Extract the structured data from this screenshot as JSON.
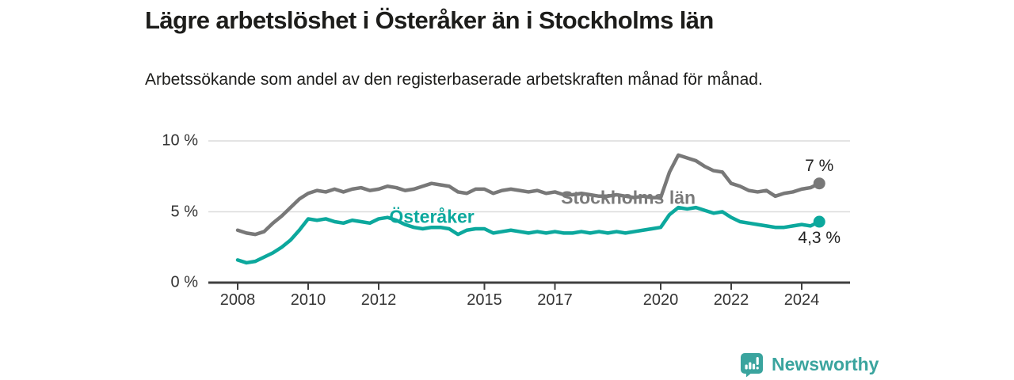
{
  "header": {
    "title": "Lägre arbetslöshet i Österåker än i Stockholms län",
    "subtitle": "Arbetssökande som andel av den registerbaserade arbetskraften månad för månad."
  },
  "chart_data": {
    "type": "line",
    "title": "Lägre arbetslöshet i Österåker än i Stockholms län",
    "subtitle": "Arbetssökande som andel av den registerbaserade arbetskraften månad för månad.",
    "xlabel": "",
    "ylabel": "",
    "unit": "%",
    "ylim": [
      0,
      10
    ],
    "xlim": [
      2007.2,
      2025.4
    ],
    "grid": "horizontal",
    "legend_position": "inline-labels",
    "colors": {
      "osteraker": "#0ca89d",
      "stockholm": "#787878",
      "axis": "#3f3f3f",
      "gridline": "#dcdcdc"
    },
    "y_ticks": [
      {
        "value": 0,
        "label": "0 %"
      },
      {
        "value": 5,
        "label": "5 %"
      },
      {
        "value": 10,
        "label": "10 %"
      }
    ],
    "x_ticks": [
      {
        "value": 2008,
        "label": "2008"
      },
      {
        "value": 2010,
        "label": "2010"
      },
      {
        "value": 2012,
        "label": "2012"
      },
      {
        "value": 2015,
        "label": "2015"
      },
      {
        "value": 2017,
        "label": "2017"
      },
      {
        "value": 2020,
        "label": "2020"
      },
      {
        "value": 2022,
        "label": "2022"
      },
      {
        "value": 2024,
        "label": "2024"
      }
    ],
    "x": [
      2008.0,
      2008.25,
      2008.5,
      2008.75,
      2009.0,
      2009.25,
      2009.5,
      2009.75,
      2010.0,
      2010.25,
      2010.5,
      2010.75,
      2011.0,
      2011.25,
      2011.5,
      2011.75,
      2012.0,
      2012.25,
      2012.5,
      2012.75,
      2013.0,
      2013.25,
      2013.5,
      2013.75,
      2014.0,
      2014.25,
      2014.5,
      2014.75,
      2015.0,
      2015.25,
      2015.5,
      2015.75,
      2016.0,
      2016.25,
      2016.5,
      2016.75,
      2017.0,
      2017.25,
      2017.5,
      2017.75,
      2018.0,
      2018.25,
      2018.5,
      2018.75,
      2019.0,
      2019.25,
      2019.5,
      2019.75,
      2020.0,
      2020.25,
      2020.5,
      2020.75,
      2021.0,
      2021.25,
      2021.5,
      2021.75,
      2022.0,
      2022.25,
      2022.5,
      2022.75,
      2023.0,
      2023.25,
      2023.5,
      2023.75,
      2024.0,
      2024.25,
      2024.5
    ],
    "series": [
      {
        "name": "Stockholms län",
        "color": "#787878",
        "label_pos": {
          "year": 2017.17,
          "value": 6.0
        },
        "values": [
          3.7,
          3.5,
          3.4,
          3.6,
          4.2,
          4.7,
          5.3,
          5.9,
          6.3,
          6.5,
          6.4,
          6.6,
          6.4,
          6.6,
          6.7,
          6.5,
          6.6,
          6.8,
          6.7,
          6.5,
          6.6,
          6.8,
          7.0,
          6.9,
          6.8,
          6.4,
          6.3,
          6.6,
          6.6,
          6.3,
          6.5,
          6.6,
          6.5,
          6.4,
          6.5,
          6.3,
          6.4,
          6.2,
          6.2,
          6.3,
          6.2,
          6.1,
          6.1,
          6.2,
          6.1,
          6.0,
          6.1,
          6.0,
          6.0,
          7.8,
          9.0,
          8.8,
          8.6,
          8.2,
          7.9,
          7.8,
          7.0,
          6.8,
          6.5,
          6.4,
          6.5,
          6.1,
          6.3,
          6.4,
          6.6,
          6.7,
          7.0
        ]
      },
      {
        "name": "Österåker",
        "color": "#0ca89d",
        "label_pos": {
          "year": 2012.3,
          "value": 4.65
        },
        "values": [
          1.6,
          1.4,
          1.5,
          1.8,
          2.1,
          2.5,
          3.0,
          3.7,
          4.5,
          4.4,
          4.5,
          4.3,
          4.2,
          4.4,
          4.3,
          4.2,
          4.5,
          4.6,
          4.4,
          4.1,
          3.9,
          3.8,
          3.9,
          3.9,
          3.8,
          3.4,
          3.7,
          3.8,
          3.8,
          3.5,
          3.6,
          3.7,
          3.6,
          3.5,
          3.6,
          3.5,
          3.6,
          3.5,
          3.5,
          3.6,
          3.5,
          3.6,
          3.5,
          3.6,
          3.5,
          3.6,
          3.7,
          3.8,
          3.9,
          4.8,
          5.3,
          5.2,
          5.3,
          5.1,
          4.9,
          5.0,
          4.6,
          4.3,
          4.2,
          4.1,
          4.0,
          3.9,
          3.9,
          4.0,
          4.1,
          4.0,
          4.3
        ]
      }
    ],
    "end_labels": {
      "stockholm": "7 %",
      "osteraker": "4,3 %"
    }
  },
  "footer": {
    "brand": "Newsworthy",
    "logo_icon": "bar-chart-speech-bubble-icon",
    "brand_color": "#3aa49e"
  }
}
